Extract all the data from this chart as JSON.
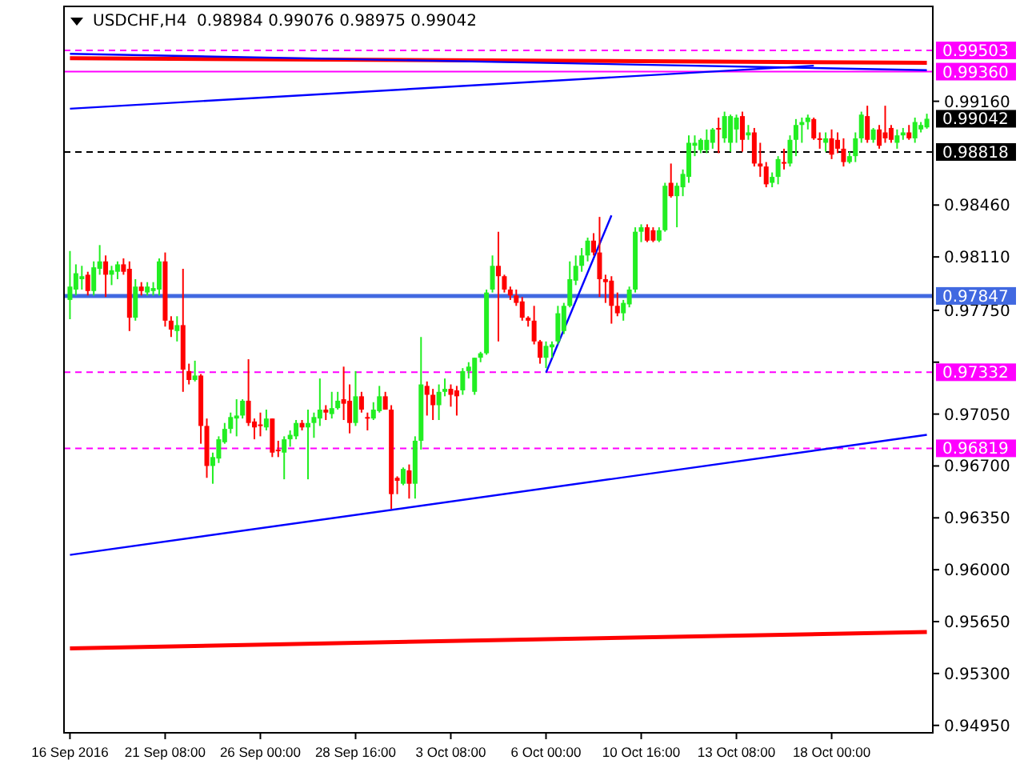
{
  "chart_data": {
    "type": "candlestick",
    "title": "USDCHF,H4  0.98984 0.99076 0.98975 0.99042",
    "categories": [
      "16 Sep 2016",
      null,
      null,
      null,
      null,
      null,
      null,
      null,
      null,
      null,
      null,
      null,
      null,
      null,
      null,
      null,
      "21 Sep 08:00",
      null,
      null,
      null,
      null,
      null,
      null,
      null,
      null,
      null,
      null,
      null,
      null,
      null,
      null,
      null,
      "26 Sep 00:00",
      null,
      null,
      null,
      null,
      null,
      null,
      null,
      null,
      null,
      null,
      null,
      null,
      null,
      null,
      null,
      "28 Sep 16:00",
      null,
      null,
      null,
      null,
      null,
      null,
      null,
      null,
      null,
      null,
      null,
      null,
      null,
      null,
      null,
      "3 Oct 08:00",
      null,
      null,
      null,
      null,
      null,
      null,
      null,
      null,
      null,
      null,
      null,
      null,
      null,
      null,
      null,
      "6 Oct 00:00",
      null,
      null,
      null,
      null,
      null,
      null,
      null,
      null,
      null,
      null,
      null,
      null,
      null,
      null,
      null,
      "10 Oct 16:00",
      null,
      null,
      null,
      null,
      null,
      null,
      null,
      null,
      null,
      null,
      null,
      null,
      null,
      null,
      null,
      "13 Oct 08:00",
      null,
      null,
      null,
      null,
      null,
      null,
      null,
      null,
      null,
      null,
      null,
      null,
      null,
      null,
      null,
      "18 Oct 00:00",
      null,
      null,
      null,
      null,
      null,
      null,
      null,
      null,
      null,
      null,
      null,
      null,
      null,
      null,
      null,
      null
    ],
    "ohlc": [
      [
        0.9782,
        0.9815,
        0.9769,
        0.9791
      ],
      [
        0.9789,
        0.9806,
        0.9785,
        0.98
      ],
      [
        0.9796,
        0.9805,
        0.9789,
        0.9798
      ],
      [
        0.9799,
        0.9801,
        0.9785,
        0.9788
      ],
      [
        0.9788,
        0.9808,
        0.9785,
        0.9804
      ],
      [
        0.9803,
        0.9819,
        0.9799,
        0.9808
      ],
      [
        0.9808,
        0.9812,
        0.9784,
        0.9799
      ],
      [
        0.9799,
        0.9805,
        0.9792,
        0.9802
      ],
      [
        0.9801,
        0.9808,
        0.9796,
        0.9806
      ],
      [
        0.9806,
        0.981,
        0.9799,
        0.9801
      ],
      [
        0.9803,
        0.9808,
        0.9761,
        0.977
      ],
      [
        0.977,
        0.9796,
        0.9768,
        0.9791
      ],
      [
        0.9791,
        0.9794,
        0.9785,
        0.9788
      ],
      [
        0.9787,
        0.9794,
        0.9785,
        0.9791
      ],
      [
        0.9788,
        0.9794,
        0.9785,
        0.979
      ],
      [
        0.9789,
        0.981,
        0.9785,
        0.9808
      ],
      [
        0.9808,
        0.9814,
        0.9764,
        0.9768
      ],
      [
        0.9768,
        0.9771,
        0.9757,
        0.9762
      ],
      [
        0.9761,
        0.9771,
        0.9754,
        0.9765
      ],
      [
        0.9765,
        0.9803,
        0.972,
        0.9735
      ],
      [
        0.9734,
        0.9739,
        0.9725,
        0.9728
      ],
      [
        0.9728,
        0.9741,
        0.9727,
        0.9731
      ],
      [
        0.9731,
        0.9732,
        0.9685,
        0.9697
      ],
      [
        0.9697,
        0.9702,
        0.9662,
        0.967
      ],
      [
        0.967,
        0.9679,
        0.9658,
        0.9676
      ],
      [
        0.9675,
        0.969,
        0.9672,
        0.9688
      ],
      [
        0.9686,
        0.9699,
        0.9685,
        0.9695
      ],
      [
        0.9695,
        0.9706,
        0.9692,
        0.9703
      ],
      [
        0.9702,
        0.9715,
        0.969,
        0.9704
      ],
      [
        0.9704,
        0.9715,
        0.9702,
        0.9714
      ],
      [
        0.9714,
        0.9742,
        0.9697,
        0.9699
      ],
      [
        0.97,
        0.9702,
        0.9688,
        0.9696
      ],
      [
        0.9698,
        0.9706,
        0.969,
        0.9697
      ],
      [
        0.9696,
        0.9708,
        0.9694,
        0.9702
      ],
      [
        0.9702,
        0.9702,
        0.9676,
        0.9679
      ],
      [
        0.9681,
        0.9687,
        0.9676,
        0.968
      ],
      [
        0.9679,
        0.969,
        0.9661,
        0.9688
      ],
      [
        0.9688,
        0.9694,
        0.9683,
        0.9691
      ],
      [
        0.969,
        0.9701,
        0.9688,
        0.9699
      ],
      [
        0.9699,
        0.9701,
        0.9694,
        0.9696
      ],
      [
        0.9696,
        0.9708,
        0.9661,
        0.9699
      ],
      [
        0.9699,
        0.9706,
        0.9689,
        0.9703
      ],
      [
        0.9702,
        0.9729,
        0.9697,
        0.9708
      ],
      [
        0.9708,
        0.9711,
        0.9701,
        0.9706
      ],
      [
        0.9705,
        0.972,
        0.9702,
        0.9709
      ],
      [
        0.9709,
        0.972,
        0.9708,
        0.9714
      ],
      [
        0.9715,
        0.9737,
        0.9701,
        0.9712
      ],
      [
        0.9714,
        0.9725,
        0.9692,
        0.9699
      ],
      [
        0.9699,
        0.9734,
        0.9697,
        0.9717
      ],
      [
        0.9717,
        0.972,
        0.9706,
        0.9708
      ],
      [
        0.9703,
        0.9706,
        0.9694,
        0.9702
      ],
      [
        0.9702,
        0.9713,
        0.9701,
        0.9708
      ],
      [
        0.9707,
        0.9724,
        0.9706,
        0.9717
      ],
      [
        0.9717,
        0.972,
        0.9708,
        0.9708
      ],
      [
        0.9708,
        0.9711,
        0.9641,
        0.9651
      ],
      [
        0.9662,
        0.9663,
        0.9651,
        0.966
      ],
      [
        0.9658,
        0.9669,
        0.9657,
        0.9668
      ],
      [
        0.9667,
        0.9671,
        0.9648,
        0.9658
      ],
      [
        0.9658,
        0.969,
        0.9648,
        0.9687
      ],
      [
        0.9687,
        0.9757,
        0.9681,
        0.9725
      ],
      [
        0.9724,
        0.9727,
        0.9704,
        0.9718
      ],
      [
        0.9718,
        0.9722,
        0.9701,
        0.9711
      ],
      [
        0.9711,
        0.9725,
        0.9701,
        0.972
      ],
      [
        0.972,
        0.9729,
        0.9717,
        0.9722
      ],
      [
        0.9722,
        0.9725,
        0.971,
        0.9718
      ],
      [
        0.9721,
        0.9724,
        0.9704,
        0.9717
      ],
      [
        0.9721,
        0.9736,
        0.9718,
        0.9734
      ],
      [
        0.9734,
        0.974,
        0.9729,
        0.9737
      ],
      [
        0.972,
        0.9743,
        0.9718,
        0.9743
      ],
      [
        0.9743,
        0.9747,
        0.974,
        0.9746
      ],
      [
        0.9746,
        0.9789,
        0.9745,
        0.9787
      ],
      [
        0.9789,
        0.9812,
        0.9787,
        0.9805
      ],
      [
        0.9805,
        0.9828,
        0.9754,
        0.9798
      ],
      [
        0.9798,
        0.9799,
        0.9787,
        0.9789
      ],
      [
        0.9789,
        0.9791,
        0.9782,
        0.9785
      ],
      [
        0.9785,
        0.9789,
        0.9778,
        0.978
      ],
      [
        0.9781,
        0.9784,
        0.9768,
        0.977
      ],
      [
        0.977,
        0.9771,
        0.9764,
        0.9768
      ],
      [
        0.9768,
        0.9778,
        0.9752,
        0.9754
      ],
      [
        0.9754,
        0.9755,
        0.9739,
        0.9743
      ],
      [
        0.9743,
        0.9754,
        0.9736,
        0.9751
      ],
      [
        0.975,
        0.9754,
        0.9743,
        0.9752
      ],
      [
        0.9754,
        0.9778,
        0.9752,
        0.9773
      ],
      [
        0.9761,
        0.978,
        0.9759,
        0.9778
      ],
      [
        0.9778,
        0.9808,
        0.9777,
        0.9796
      ],
      [
        0.9795,
        0.9812,
        0.9792,
        0.9805
      ],
      [
        0.9805,
        0.9817,
        0.9801,
        0.9812
      ],
      [
        0.9812,
        0.9824,
        0.9808,
        0.9822
      ],
      [
        0.9822,
        0.9827,
        0.9812,
        0.9814
      ],
      [
        0.9814,
        0.9838,
        0.9784,
        0.9796
      ],
      [
        0.9796,
        0.9799,
        0.978,
        0.9794
      ],
      [
        0.9795,
        0.9798,
        0.9766,
        0.9778
      ],
      [
        0.9778,
        0.9787,
        0.9771,
        0.9773
      ],
      [
        0.9773,
        0.9782,
        0.9768,
        0.978
      ],
      [
        0.9779,
        0.9791,
        0.9777,
        0.9789
      ],
      [
        0.9789,
        0.9831,
        0.9787,
        0.9828
      ],
      [
        0.9828,
        0.9833,
        0.9821,
        0.9831
      ],
      [
        0.9831,
        0.9833,
        0.9821,
        0.9822
      ],
      [
        0.9829,
        0.9831,
        0.9821,
        0.9822
      ],
      [
        0.9822,
        0.9831,
        0.9821,
        0.9829
      ],
      [
        0.9829,
        0.9861,
        0.9828,
        0.9859
      ],
      [
        0.9861,
        0.9874,
        0.9851,
        0.9852
      ],
      [
        0.9852,
        0.9861,
        0.9831,
        0.9859
      ],
      [
        0.9858,
        0.987,
        0.9852,
        0.9867
      ],
      [
        0.9865,
        0.9893,
        0.9861,
        0.9888
      ],
      [
        0.9886,
        0.9893,
        0.9879,
        0.9888
      ],
      [
        0.9883,
        0.9891,
        0.9881,
        0.989
      ],
      [
        0.9883,
        0.9897,
        0.9881,
        0.989
      ],
      [
        0.9888,
        0.9898,
        0.9884,
        0.9897
      ],
      [
        0.9898,
        0.9905,
        0.9881,
        0.9897
      ],
      [
        0.9891,
        0.9909,
        0.9888,
        0.9906
      ],
      [
        0.9888,
        0.9907,
        0.9882,
        0.9906
      ],
      [
        0.9897,
        0.9907,
        0.9888,
        0.9905
      ],
      [
        0.9906,
        0.9909,
        0.9882,
        0.989
      ],
      [
        0.9893,
        0.99,
        0.989,
        0.9895
      ],
      [
        0.9895,
        0.9898,
        0.9872,
        0.9874
      ],
      [
        0.9874,
        0.9888,
        0.9865,
        0.9872
      ],
      [
        0.9872,
        0.9875,
        0.9858,
        0.986
      ],
      [
        0.9861,
        0.9868,
        0.9858,
        0.9865
      ],
      [
        0.9865,
        0.9879,
        0.986,
        0.9877
      ],
      [
        0.9875,
        0.9884,
        0.987,
        0.9874
      ],
      [
        0.9874,
        0.9893,
        0.9872,
        0.989
      ],
      [
        0.989,
        0.9904,
        0.9879,
        0.99
      ],
      [
        0.99,
        0.9905,
        0.9888,
        0.9902
      ],
      [
        0.9902,
        0.9907,
        0.9897,
        0.9905
      ],
      [
        0.9904,
        0.9905,
        0.989,
        0.9891
      ],
      [
        0.9891,
        0.9895,
        0.9884,
        0.989
      ],
      [
        0.9888,
        0.9895,
        0.9882,
        0.9891
      ],
      [
        0.9891,
        0.9897,
        0.9877,
        0.988
      ],
      [
        0.989,
        0.9895,
        0.9881,
        0.9884
      ],
      [
        0.9884,
        0.9891,
        0.9872,
        0.9875
      ],
      [
        0.9875,
        0.9882,
        0.9874,
        0.9879
      ],
      [
        0.9879,
        0.9895,
        0.9875,
        0.9891
      ],
      [
        0.9891,
        0.9909,
        0.9888,
        0.9907
      ],
      [
        0.9906,
        0.9913,
        0.9888,
        0.989
      ],
      [
        0.989,
        0.9898,
        0.9888,
        0.9897
      ],
      [
        0.9897,
        0.99,
        0.9884,
        0.9886
      ],
      [
        0.9895,
        0.9913,
        0.9888,
        0.9891
      ],
      [
        0.9898,
        0.99,
        0.9888,
        0.989
      ],
      [
        0.9888,
        0.9897,
        0.9884,
        0.9893
      ],
      [
        0.9893,
        0.9898,
        0.989,
        0.9895
      ],
      [
        0.9895,
        0.99,
        0.989,
        0.9891
      ],
      [
        0.9891,
        0.9905,
        0.9888,
        0.9902
      ],
      [
        0.9897,
        0.9902,
        0.9895,
        0.99
      ],
      [
        0.98984,
        0.99076,
        0.98975,
        0.99042
      ]
    ],
    "series": [
      {
        "type": "line",
        "values": [
          0.961,
          null,
          null,
          null,
          null,
          null,
          null,
          null,
          null,
          null,
          null,
          null,
          null,
          null,
          null,
          null,
          null,
          null,
          null,
          null,
          null,
          null,
          null,
          null,
          null,
          null,
          null,
          null,
          null,
          null,
          null,
          null,
          null,
          null,
          null,
          null,
          null,
          null,
          null,
          null,
          null,
          null,
          null,
          null,
          null,
          null,
          null,
          null,
          null,
          null,
          null,
          null,
          null,
          null,
          null,
          null,
          null,
          null,
          null,
          null,
          null,
          null,
          null,
          null,
          null,
          null,
          null,
          null,
          null,
          null,
          null,
          null,
          null,
          null,
          null,
          null,
          null,
          null,
          null,
          null,
          null,
          null,
          null,
          null,
          null,
          null,
          null,
          null,
          null,
          null,
          null,
          null,
          null,
          null,
          null,
          null,
          null,
          null,
          null,
          null,
          null,
          null,
          null,
          null,
          null,
          null,
          null,
          null,
          null,
          null,
          null,
          null,
          null,
          null,
          null,
          null,
          null,
          null,
          null,
          null,
          null,
          null,
          null,
          null,
          null,
          null,
          null,
          null,
          null,
          null,
          null,
          null,
          null,
          null,
          null,
          null,
          null,
          null,
          null,
          null,
          null,
          null,
          null,
          null,
          0.9691
        ],
        "color": "#0000ff",
        "line_style": "solid"
      },
      {
        "type": "line",
        "values": [
          0.9547,
          null,
          null,
          null,
          null,
          null,
          null,
          null,
          null,
          null,
          null,
          null,
          null,
          null,
          null,
          null,
          null,
          null,
          null,
          null,
          null,
          null,
          null,
          null,
          null,
          null,
          null,
          null,
          null,
          null,
          null,
          null,
          null,
          null,
          null,
          null,
          null,
          null,
          null,
          null,
          null,
          null,
          null,
          null,
          null,
          null,
          null,
          null,
          null,
          null,
          null,
          null,
          null,
          null,
          null,
          null,
          null,
          null,
          null,
          null,
          null,
          null,
          null,
          null,
          null,
          null,
          null,
          null,
          null,
          null,
          null,
          null,
          null,
          null,
          null,
          null,
          null,
          null,
          null,
          null,
          null,
          null,
          null,
          null,
          null,
          null,
          null,
          null,
          null,
          null,
          null,
          null,
          null,
          null,
          null,
          null,
          null,
          null,
          null,
          null,
          null,
          null,
          null,
          null,
          null,
          null,
          null,
          null,
          null,
          null,
          null,
          null,
          null,
          null,
          null,
          null,
          null,
          null,
          null,
          null,
          null,
          null,
          null,
          null,
          null,
          null,
          null,
          null,
          null,
          null,
          null,
          null,
          null,
          null,
          null,
          null,
          null,
          null,
          null,
          null,
          null,
          null,
          null,
          null,
          0.9558
        ],
        "color": "#ff0000",
        "line_style": "solid"
      },
      {
        "type": "line",
        "values": [
          0.9945,
          null,
          null,
          null,
          null,
          null,
          null,
          null,
          null,
          null,
          null,
          null,
          null,
          null,
          null,
          null,
          null,
          null,
          null,
          null,
          null,
          null,
          null,
          null,
          null,
          null,
          null,
          null,
          null,
          null,
          null,
          null,
          null,
          null,
          null,
          null,
          null,
          null,
          null,
          null,
          null,
          null,
          null,
          null,
          null,
          null,
          null,
          null,
          null,
          null,
          null,
          null,
          null,
          null,
          null,
          null,
          null,
          null,
          null,
          null,
          null,
          null,
          null,
          null,
          null,
          null,
          null,
          null,
          null,
          null,
          null,
          null,
          null,
          null,
          null,
          null,
          null,
          null,
          null,
          null,
          null,
          null,
          null,
          null,
          null,
          null,
          null,
          null,
          null,
          null,
          null,
          null,
          null,
          null,
          null,
          null,
          null,
          null,
          null,
          null,
          null,
          null,
          null,
          null,
          null,
          null,
          null,
          null,
          null,
          null,
          null,
          null,
          null,
          null,
          null,
          null,
          null,
          null,
          null,
          null,
          null,
          null,
          null,
          null,
          null,
          null,
          null,
          null,
          null,
          null,
          null,
          null,
          null,
          null,
          null,
          null,
          null,
          null,
          null,
          null,
          null,
          null,
          null,
          null,
          0.9942
        ],
        "color": "#ff0000",
        "line_style": "solid"
      },
      {
        "type": "line",
        "values": [
          0.9948,
          null,
          null,
          null,
          null,
          null,
          null,
          null,
          null,
          null,
          null,
          null,
          null,
          null,
          null,
          null,
          null,
          null,
          null,
          null,
          null,
          null,
          null,
          null,
          null,
          null,
          null,
          null,
          null,
          null,
          null,
          null,
          null,
          null,
          null,
          null,
          null,
          null,
          null,
          null,
          null,
          null,
          null,
          null,
          null,
          null,
          null,
          null,
          null,
          null,
          null,
          null,
          null,
          null,
          null,
          null,
          null,
          null,
          null,
          null,
          null,
          null,
          null,
          null,
          null,
          null,
          null,
          null,
          null,
          null,
          null,
          null,
          null,
          null,
          null,
          null,
          null,
          null,
          null,
          null,
          null,
          null,
          null,
          null,
          null,
          null,
          null,
          null,
          null,
          null,
          null,
          null,
          null,
          null,
          null,
          null,
          null,
          null,
          null,
          null,
          null,
          null,
          null,
          null,
          null,
          null,
          null,
          null,
          null,
          null,
          null,
          null,
          null,
          null,
          null,
          null,
          null,
          null,
          null,
          null,
          null,
          null,
          null,
          null,
          null,
          null,
          null,
          null,
          null,
          null,
          null,
          null,
          null,
          null,
          null,
          null,
          null,
          null,
          null,
          null,
          null,
          null,
          null,
          null,
          0.9937
        ],
        "color": "#0000ff",
        "line_style": "solid"
      },
      {
        "type": "line",
        "values": [
          0.9911,
          null,
          null,
          null,
          null,
          null,
          null,
          null,
          null,
          null,
          null,
          null,
          null,
          null,
          null,
          null,
          null,
          null,
          null,
          null,
          null,
          null,
          null,
          null,
          null,
          null,
          null,
          null,
          null,
          null,
          null,
          null,
          null,
          null,
          null,
          null,
          null,
          null,
          null,
          null,
          null,
          null,
          null,
          null,
          null,
          null,
          null,
          null,
          null,
          null,
          null,
          null,
          null,
          null,
          null,
          null,
          null,
          null,
          null,
          null,
          null,
          null,
          null,
          null,
          null,
          null,
          null,
          null,
          null,
          null,
          null,
          null,
          null,
          null,
          null,
          null,
          null,
          null,
          null,
          null,
          null,
          null,
          null,
          null,
          null,
          null,
          null,
          null,
          null,
          null,
          null,
          null,
          null,
          null,
          null,
          null,
          null,
          null,
          null,
          null,
          null,
          null,
          null,
          null,
          null,
          null,
          null,
          null,
          null,
          null,
          null,
          null,
          null,
          null,
          null,
          null,
          null,
          null,
          null,
          null,
          null,
          null,
          null,
          null,
          null,
          0.994,
          null,
          null,
          null,
          null,
          null,
          null,
          null,
          null,
          null,
          null,
          null,
          null,
          null,
          null,
          null,
          null,
          null,
          null,
          null
        ],
        "color": "#0000ff",
        "line_style": "solid"
      },
      {
        "type": "line",
        "values": [
          null,
          null,
          null,
          null,
          null,
          null,
          null,
          null,
          null,
          null,
          null,
          null,
          null,
          null,
          null,
          null,
          null,
          null,
          null,
          null,
          null,
          null,
          null,
          null,
          null,
          null,
          null,
          null,
          null,
          null,
          null,
          null,
          null,
          null,
          null,
          null,
          null,
          null,
          null,
          null,
          null,
          null,
          null,
          null,
          null,
          null,
          null,
          null,
          null,
          null,
          null,
          null,
          null,
          null,
          null,
          null,
          null,
          null,
          null,
          null,
          null,
          null,
          null,
          null,
          null,
          null,
          null,
          null,
          null,
          null,
          null,
          null,
          null,
          null,
          null,
          null,
          null,
          null,
          null,
          null,
          0.9733,
          null,
          null,
          null,
          null,
          null,
          null,
          null,
          null,
          null,
          null,
          0.9839,
          null,
          null,
          null,
          null,
          null,
          null,
          null,
          null,
          null,
          null,
          null,
          null,
          null,
          null,
          null,
          null,
          null,
          null,
          null,
          null,
          null,
          null,
          null,
          null,
          null,
          null,
          null,
          null,
          null,
          null,
          null,
          null,
          null,
          null,
          null,
          null,
          null,
          null,
          null,
          null,
          null,
          null,
          null,
          null,
          null,
          null,
          null,
          null,
          null,
          null,
          null,
          null,
          null
        ],
        "color": "#0000ff",
        "line_style": "solid"
      }
    ],
    "ylim": [
      0.949,
      0.998
    ],
    "yticks": [
      {
        "value": 0.9495,
        "label": "0.94950"
      },
      {
        "value": 0.953,
        "label": "0.95300"
      },
      {
        "value": 0.9565,
        "label": "0.95650"
      },
      {
        "value": 0.96,
        "label": "0.96000"
      },
      {
        "value": 0.9635,
        "label": "0.96350"
      },
      {
        "value": 0.967,
        "label": "0.96700"
      },
      {
        "value": 0.9705,
        "label": "0.97050"
      },
      {
        "value": 0.974,
        "label": null
      },
      {
        "value": 0.9775,
        "label": "0.97750"
      },
      {
        "value": 0.9811,
        "label": "0.98110"
      },
      {
        "value": 0.9846,
        "label": "0.98460"
      },
      {
        "value": 0.9916,
        "label": "0.99160"
      }
    ],
    "ref_lines": [
      {
        "axis": "y",
        "value": 0.99503,
        "label": "0.99503",
        "color": "#ff00ff",
        "line_style": "dashed"
      },
      {
        "axis": "y",
        "value": 0.9936,
        "label": "0.99360",
        "color": "#ff00ff",
        "line_style": "solid"
      },
      {
        "axis": "y",
        "value": 0.98818,
        "label": "0.98818",
        "color": "#000000",
        "line_style": "dashed"
      },
      {
        "axis": "y",
        "value": 0.97847,
        "label": "0.97847",
        "color": "#4169e1",
        "line_style": "solid"
      },
      {
        "axis": "y",
        "value": 0.97332,
        "label": "0.97332",
        "color": "#ff00ff",
        "line_style": "dashed"
      },
      {
        "axis": "y",
        "value": 0.96819,
        "label": "0.96819",
        "color": "#ff00ff",
        "line_style": "dashed"
      }
    ],
    "annotations": [
      "0.99042"
    ]
  }
}
